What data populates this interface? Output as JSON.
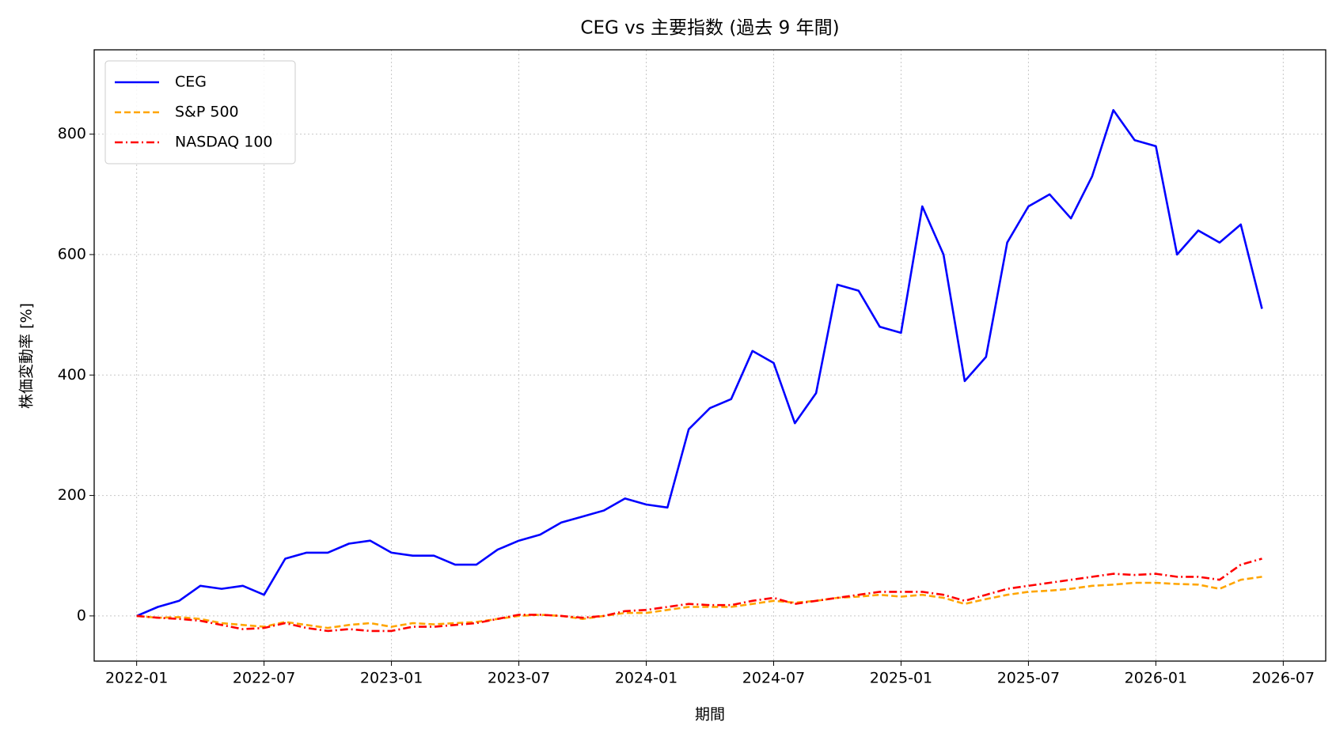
{
  "chart_data": {
    "type": "line",
    "title": "CEG vs 主要指数 (過去 9 年間)",
    "xlabel": "期間",
    "ylabel": "株価変動率 [%]",
    "x": [
      "2022-01",
      "2022-02",
      "2022-03",
      "2022-04",
      "2022-05",
      "2022-06",
      "2022-07",
      "2022-08",
      "2022-09",
      "2022-10",
      "2022-11",
      "2022-12",
      "2023-01",
      "2023-02",
      "2023-03",
      "2023-04",
      "2023-05",
      "2023-06",
      "2023-07",
      "2023-08",
      "2023-09",
      "2023-10",
      "2023-11",
      "2023-12",
      "2024-01",
      "2024-02",
      "2024-03",
      "2024-04",
      "2024-05",
      "2024-06",
      "2024-07",
      "2024-08",
      "2024-09",
      "2024-10",
      "2024-11",
      "2024-12",
      "2025-01",
      "2025-02",
      "2025-03",
      "2025-04",
      "2025-05",
      "2025-06",
      "2025-07",
      "2025-08",
      "2025-09",
      "2025-10",
      "2025-11",
      "2025-12",
      "2026-01",
      "2026-02",
      "2026-03",
      "2026-04",
      "2026-05",
      "2026-06"
    ],
    "series": [
      {
        "name": "CEG",
        "color": "#0000ff",
        "linestyle": "solid",
        "values": [
          0,
          15,
          25,
          50,
          45,
          50,
          35,
          95,
          105,
          105,
          120,
          125,
          105,
          100,
          100,
          85,
          85,
          110,
          125,
          135,
          155,
          165,
          175,
          195,
          185,
          180,
          310,
          345,
          360,
          440,
          420,
          320,
          370,
          550,
          540,
          480,
          470,
          680,
          600,
          390,
          430,
          620,
          680,
          700,
          660,
          730,
          840,
          790,
          780,
          600,
          640,
          620,
          650,
          510
        ]
      },
      {
        "name": "S&P 500",
        "color": "#ffa500",
        "linestyle": "dashed",
        "values": [
          0,
          -3,
          -2,
          -5,
          -12,
          -15,
          -18,
          -10,
          -15,
          -20,
          -15,
          -12,
          -18,
          -12,
          -14,
          -12,
          -10,
          -5,
          0,
          2,
          0,
          -5,
          0,
          5,
          5,
          10,
          15,
          15,
          15,
          20,
          25,
          22,
          25,
          30,
          32,
          35,
          32,
          35,
          30,
          20,
          28,
          35,
          40,
          42,
          45,
          50,
          52,
          55,
          55,
          53,
          52,
          45,
          60,
          65
        ]
      },
      {
        "name": "NASDAQ 100",
        "color": "#ff0000",
        "linestyle": "dashdot",
        "values": [
          0,
          -3,
          -5,
          -8,
          -15,
          -22,
          -20,
          -12,
          -20,
          -25,
          -22,
          -25,
          -25,
          -18,
          -18,
          -15,
          -12,
          -5,
          2,
          2,
          0,
          -3,
          0,
          8,
          10,
          15,
          20,
          18,
          18,
          25,
          30,
          20,
          25,
          30,
          35,
          40,
          40,
          40,
          35,
          25,
          35,
          45,
          50,
          55,
          60,
          65,
          70,
          68,
          70,
          65,
          65,
          60,
          85,
          95
        ]
      }
    ],
    "xlim": [
      "2021-11",
      "2026-09"
    ],
    "xticks": [
      "2022-01",
      "2022-07",
      "2023-01",
      "2023-07",
      "2024-01",
      "2024-07",
      "2025-01",
      "2025-07",
      "2026-01",
      "2026-07"
    ],
    "ylim": [
      -75,
      940
    ],
    "yticks": [
      0,
      200,
      400,
      600,
      800
    ],
    "grid": true,
    "legend": "upper left"
  }
}
